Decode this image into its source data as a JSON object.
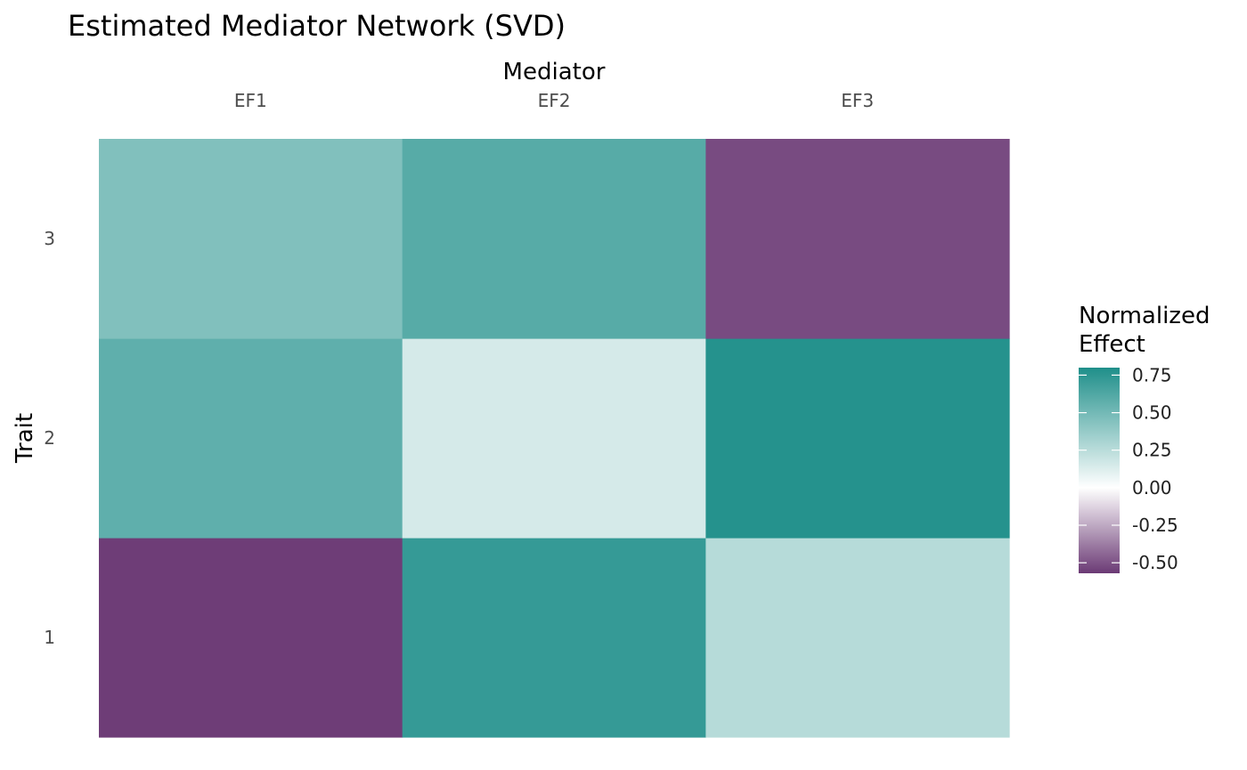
{
  "chart_data": {
    "type": "heatmap",
    "title": "Estimated Mediator Network (SVD)",
    "xlabel": "Mediator",
    "ylabel": "Trait",
    "x_categories": [
      "EF1",
      "EF2",
      "EF3"
    ],
    "y_categories": [
      "1",
      "2",
      "3"
    ],
    "values": [
      [
        -0.56,
        0.72,
        0.26
      ],
      [
        0.57,
        0.15,
        0.78
      ],
      [
        0.45,
        0.6,
        -0.52
      ]
    ],
    "legend": {
      "title_lines": [
        "Normalized",
        "Effect"
      ],
      "ticks": [
        0.75,
        0.5,
        0.25,
        0.0,
        -0.25,
        -0.5
      ],
      "tick_labels": [
        "0.75",
        "0.50",
        "0.25",
        "0.00",
        "-0.25",
        "-0.50"
      ],
      "range": [
        -0.57,
        0.8
      ],
      "position": "right"
    },
    "colors": {
      "low": "#6b3a75",
      "mid": "#ffffff",
      "high": "#1f8f8a"
    },
    "grid": false
  }
}
